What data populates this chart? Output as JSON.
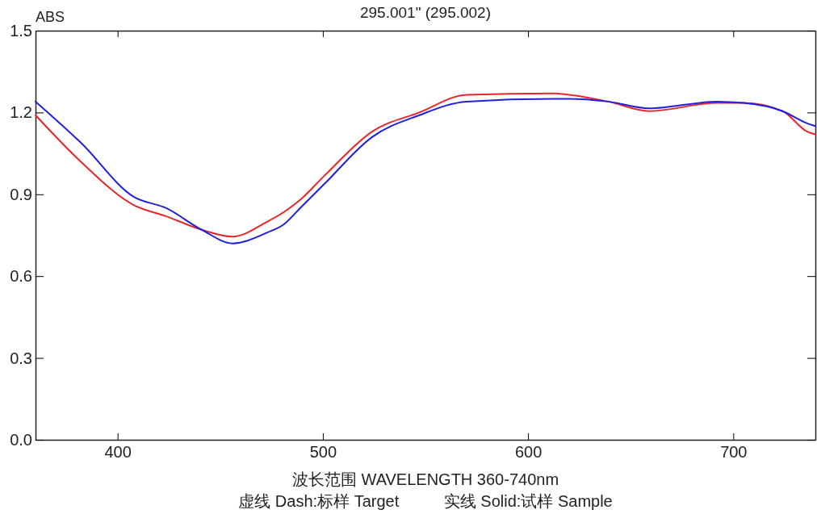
{
  "chart_data": {
    "type": "line",
    "title": "295.001\" (295.002)",
    "xlabel": "波长范围 WAVELENGTH  360-740nm",
    "ylabel": "ABS",
    "annotations": [
      "虚线 Dash:标样 Target          实线 Solid:试样 Sample"
    ],
    "xlim": [
      360,
      740
    ],
    "xticks": [
      400,
      500,
      600,
      700
    ],
    "ylim": [
      0,
      1.5
    ],
    "yticks": [
      {
        "value": 0,
        "label": "0.0"
      },
      0.3,
      0.6,
      0.9,
      1.2,
      1.5
    ],
    "grid": false,
    "line_style": "solid",
    "series": [
      {
        "color": "#e8262a",
        "x": [
          360,
          382,
          408,
          423.5,
          441,
          456,
          473,
          481,
          489,
          501,
          524,
          547,
          570,
          612,
          620,
          639,
          659,
          692,
          705,
          724,
          736,
          740
        ],
        "values": [
          1.19,
          1.02,
          0.86,
          0.82,
          0.77,
          0.745,
          0.8,
          0.835,
          0.88,
          0.97,
          1.13,
          1.2,
          1.265,
          1.27,
          1.265,
          1.24,
          1.205,
          1.235,
          1.235,
          1.205,
          1.13,
          1.12
        ]
      },
      {
        "color": "#2020e0",
        "x": [
          360,
          382,
          408,
          423.5,
          441,
          456,
          473,
          481,
          489,
          501,
          524,
          547,
          570,
          612,
          620,
          639,
          659,
          692,
          705,
          724,
          736,
          740
        ],
        "values": [
          1.24,
          1.09,
          0.89,
          0.85,
          0.77,
          0.72,
          0.76,
          0.79,
          0.85,
          0.94,
          1.11,
          1.19,
          1.24,
          1.25,
          1.25,
          1.24,
          1.215,
          1.24,
          1.235,
          1.205,
          1.16,
          1.15
        ]
      }
    ]
  }
}
